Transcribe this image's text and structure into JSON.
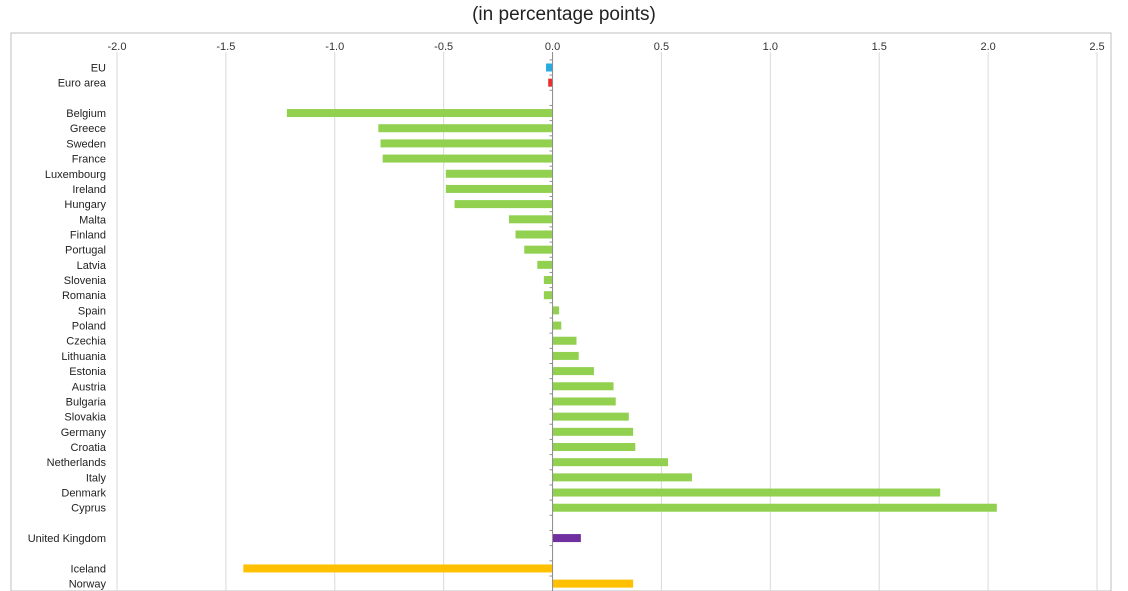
{
  "chart_data": {
    "type": "bar",
    "orientation": "horizontal",
    "title": "",
    "subtitle": "(in percentage points)",
    "xlabel": "",
    "ylabel": "",
    "xlim": [
      -2.0,
      2.5
    ],
    "x_ticks": [
      "-2.0",
      "-1.5",
      "-1.0",
      "-0.5",
      "0.0",
      "0.5",
      "1.0",
      "1.5",
      "2.0",
      "2.5"
    ],
    "x_tick_values": [
      -2.0,
      -1.5,
      -1.0,
      -0.5,
      0.0,
      0.5,
      1.0,
      1.5,
      2.0,
      2.5
    ],
    "grid": "vertical",
    "legend": "none",
    "colors": {
      "eu": "#29abe2",
      "euro_area": "#e8312f",
      "member_state": "#92d050",
      "united_kingdom": "#7030a0",
      "efta": "#ffc000"
    },
    "bars": [
      {
        "label": "EU",
        "value": -0.03,
        "color": "#29abe2",
        "slot": 0
      },
      {
        "label": "Euro area",
        "value": -0.02,
        "color": "#e8312f",
        "slot": 1
      },
      {
        "label": "Belgium",
        "value": -1.22,
        "color": "#92d050",
        "slot": 3
      },
      {
        "label": "Greece",
        "value": -0.8,
        "color": "#92d050",
        "slot": 4
      },
      {
        "label": "Sweden",
        "value": -0.79,
        "color": "#92d050",
        "slot": 5
      },
      {
        "label": "France",
        "value": -0.78,
        "color": "#92d050",
        "slot": 6
      },
      {
        "label": "Luxembourg",
        "value": -0.49,
        "color": "#92d050",
        "slot": 7
      },
      {
        "label": "Ireland",
        "value": -0.49,
        "color": "#92d050",
        "slot": 8
      },
      {
        "label": "Hungary",
        "value": -0.45,
        "color": "#92d050",
        "slot": 9
      },
      {
        "label": "Malta",
        "value": -0.2,
        "color": "#92d050",
        "slot": 10
      },
      {
        "label": "Finland",
        "value": -0.17,
        "color": "#92d050",
        "slot": 11
      },
      {
        "label": "Portugal",
        "value": -0.13,
        "color": "#92d050",
        "slot": 12
      },
      {
        "label": "Latvia",
        "value": -0.07,
        "color": "#92d050",
        "slot": 13
      },
      {
        "label": "Slovenia",
        "value": -0.04,
        "color": "#92d050",
        "slot": 14
      },
      {
        "label": "Romania",
        "value": -0.04,
        "color": "#92d050",
        "slot": 15
      },
      {
        "label": "Spain",
        "value": 0.03,
        "color": "#92d050",
        "slot": 16
      },
      {
        "label": "Poland",
        "value": 0.04,
        "color": "#92d050",
        "slot": 17
      },
      {
        "label": "Czechia",
        "value": 0.11,
        "color": "#92d050",
        "slot": 18
      },
      {
        "label": "Lithuania",
        "value": 0.12,
        "color": "#92d050",
        "slot": 19
      },
      {
        "label": "Estonia",
        "value": 0.19,
        "color": "#92d050",
        "slot": 20
      },
      {
        "label": "Austria",
        "value": 0.28,
        "color": "#92d050",
        "slot": 21
      },
      {
        "label": "Bulgaria",
        "value": 0.29,
        "color": "#92d050",
        "slot": 22
      },
      {
        "label": "Slovakia",
        "value": 0.35,
        "color": "#92d050",
        "slot": 23
      },
      {
        "label": "Germany",
        "value": 0.37,
        "color": "#92d050",
        "slot": 24
      },
      {
        "label": "Croatia",
        "value": 0.38,
        "color": "#92d050",
        "slot": 25
      },
      {
        "label": "Netherlands",
        "value": 0.53,
        "color": "#92d050",
        "slot": 26
      },
      {
        "label": "Italy",
        "value": 0.64,
        "color": "#92d050",
        "slot": 27
      },
      {
        "label": "Denmark",
        "value": 1.78,
        "color": "#92d050",
        "slot": 28
      },
      {
        "label": "Cyprus",
        "value": 2.04,
        "color": "#92d050",
        "slot": 29
      },
      {
        "label": "United Kingdom",
        "value": 0.13,
        "color": "#7030a0",
        "slot": 31
      },
      {
        "label": "Iceland",
        "value": -1.42,
        "color": "#ffc000",
        "slot": 33
      },
      {
        "label": "Norway",
        "value": 0.37,
        "color": "#ffc000",
        "slot": 34
      }
    ]
  }
}
